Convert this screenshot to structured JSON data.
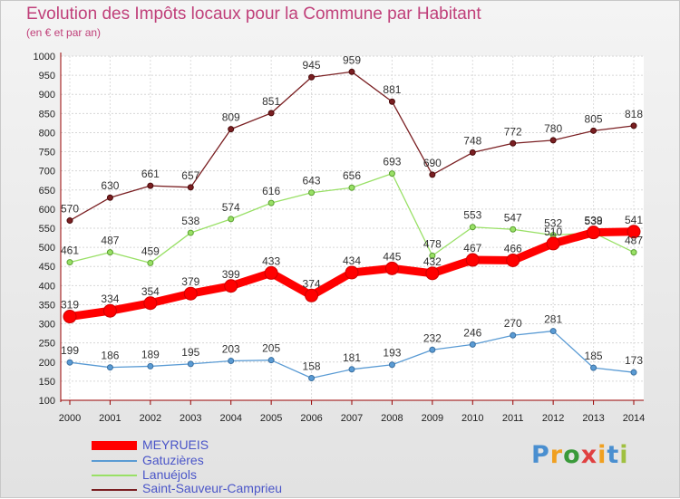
{
  "header": {
    "title": "Evolution des Impôts locaux pour la Commune par Habitant",
    "subtitle": "(en € et par an)"
  },
  "logo": {
    "letters": [
      "P",
      "r",
      "o",
      "x",
      "i",
      "t",
      "i"
    ],
    "colors": [
      "#4a8fd0",
      "#f0a020",
      "#3a9a3a",
      "#e04040",
      "#f0a020",
      "#4a8fd0",
      "#a0c040"
    ]
  },
  "colors": {
    "meyrueis": "#ff0000",
    "gatuzieres": "#5a9bd4",
    "lanuejols": "#99e066",
    "saint_sauveur": "#7a1f22",
    "axis": "#990000",
    "title": "#c0407a"
  },
  "chart_data": {
    "type": "line",
    "x": [
      "2000",
      "2001",
      "2002",
      "2003",
      "2004",
      "2005",
      "2006",
      "2007",
      "2008",
      "2009",
      "2010",
      "2011",
      "2012",
      "2013",
      "2014"
    ],
    "ylim": [
      100,
      1000
    ],
    "yticks": [
      "100",
      "150",
      "200",
      "250",
      "300",
      "350",
      "400",
      "450",
      "500",
      "550",
      "600",
      "650",
      "700",
      "750",
      "800",
      "850",
      "900",
      "950",
      "1000"
    ],
    "grid": true,
    "legend_position": "bottom-left",
    "series": [
      {
        "name": "MEYRUEIS",
        "values": [
          319,
          334,
          354,
          379,
          399,
          433,
          374,
          434,
          445,
          432,
          467,
          466,
          510,
          539,
          541
        ]
      },
      {
        "name": "Gatuzières",
        "values": [
          199,
          186,
          189,
          195,
          203,
          205,
          158,
          181,
          193,
          232,
          246,
          270,
          281,
          185,
          173
        ]
      },
      {
        "name": "Lanuéjols",
        "values": [
          461,
          487,
          459,
          538,
          574,
          616,
          643,
          656,
          693,
          478,
          553,
          547,
          532,
          538,
          487
        ]
      },
      {
        "name": "Saint-Sauveur-Camprieu",
        "values": [
          570,
          630,
          661,
          657,
          809,
          851,
          945,
          959,
          881,
          690,
          748,
          772,
          780,
          805,
          818
        ]
      }
    ]
  }
}
